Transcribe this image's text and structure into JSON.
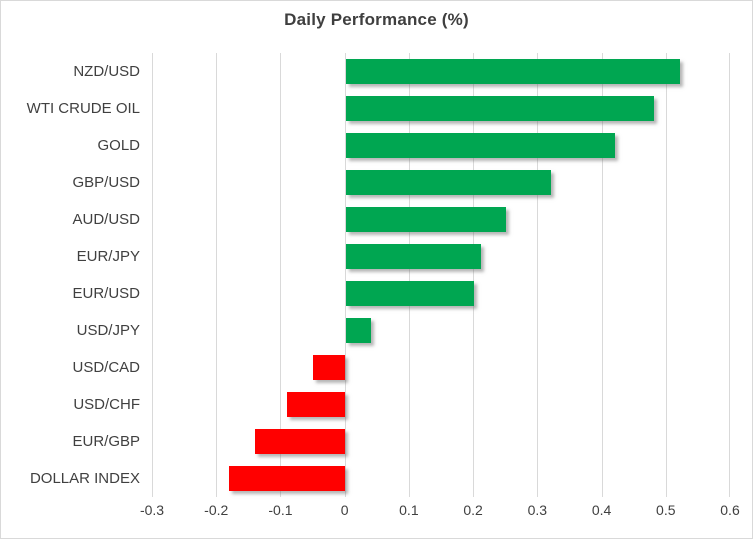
{
  "chart_data": {
    "type": "bar",
    "orientation": "horizontal",
    "title": "Daily Performance (%)",
    "categories": [
      "NZD/USD",
      "WTI CRUDE OIL",
      "GOLD",
      "GBP/USD",
      "AUD/USD",
      "EUR/JPY",
      "EUR/USD",
      "USD/JPY",
      "USD/CAD",
      "USD/CHF",
      "EUR/GBP",
      "DOLLAR INDEX"
    ],
    "values": [
      0.52,
      0.48,
      0.42,
      0.32,
      0.25,
      0.21,
      0.2,
      0.04,
      -0.05,
      -0.09,
      -0.14,
      -0.18
    ],
    "xlim": [
      -0.3,
      0.6
    ],
    "x_ticks": [
      -0.3,
      -0.2,
      -0.1,
      0,
      0.1,
      0.2,
      0.3,
      0.4,
      0.5,
      0.6
    ],
    "x_tick_labels": [
      "-0.3",
      "-0.2",
      "-0.1",
      "0",
      "0.1",
      "0.2",
      "0.3",
      "0.4",
      "0.5",
      "0.6"
    ],
    "grid": true,
    "legend": "none",
    "positive_color": "#00A651",
    "negative_color": "#FF0000",
    "gridline_color": "#D9D9D9",
    "text_color": "#404040",
    "background_color": "#FFFFFF"
  }
}
